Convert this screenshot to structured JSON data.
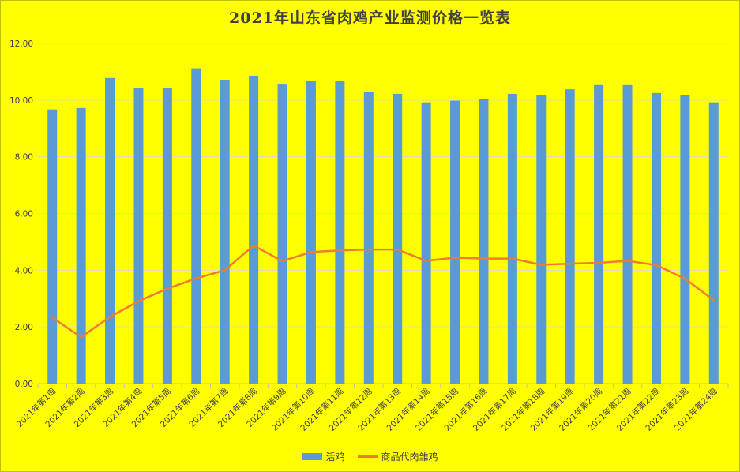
{
  "chart_data": {
    "type": "bar",
    "title": "2021年山东省肉鸡产业监测价格一览表",
    "xlabel": "",
    "ylabel": "",
    "ylim": [
      0,
      12
    ],
    "yticks": [
      "0.00",
      "2.00",
      "4.00",
      "6.00",
      "8.00",
      "10.00",
      "12.00"
    ],
    "grid": true,
    "legend_position": "bottom",
    "categories": [
      "2021年第1周",
      "2021年第2周",
      "2021年第3周",
      "2021年第4周",
      "2021年第5周",
      "2021年第6周",
      "2021年第7周",
      "2021年第8周",
      "2021年第9周",
      "2021年第10周",
      "2021年第11周",
      "2021年第12周",
      "2021年第13周",
      "2021年第14周",
      "2021年第15周",
      "2021年第16周",
      "2021年第17周",
      "2021年第18周",
      "2021年第19周",
      "2021年第20周",
      "2021年第21周",
      "2021年第22周",
      "2021年第23周",
      "2021年第24周"
    ],
    "series": [
      {
        "name": "活鸡",
        "type": "bar",
        "color": "#5B9BD5",
        "values": [
          9.67,
          9.72,
          10.78,
          10.44,
          10.42,
          11.12,
          10.72,
          10.86,
          10.55,
          10.69,
          10.69,
          10.28,
          10.22,
          9.92,
          9.98,
          10.03,
          10.22,
          10.19,
          10.38,
          10.53,
          10.53,
          10.25,
          10.19,
          9.92
        ]
      },
      {
        "name": "商品代肉雏鸡",
        "type": "line",
        "color": "#ED7D31",
        "values": [
          2.33,
          1.64,
          2.35,
          2.91,
          3.35,
          3.71,
          4.0,
          4.87,
          4.32,
          4.64,
          4.7,
          4.73,
          4.73,
          4.33,
          4.44,
          4.41,
          4.41,
          4.19,
          4.23,
          4.26,
          4.33,
          4.18,
          3.7,
          2.94
        ]
      }
    ]
  }
}
